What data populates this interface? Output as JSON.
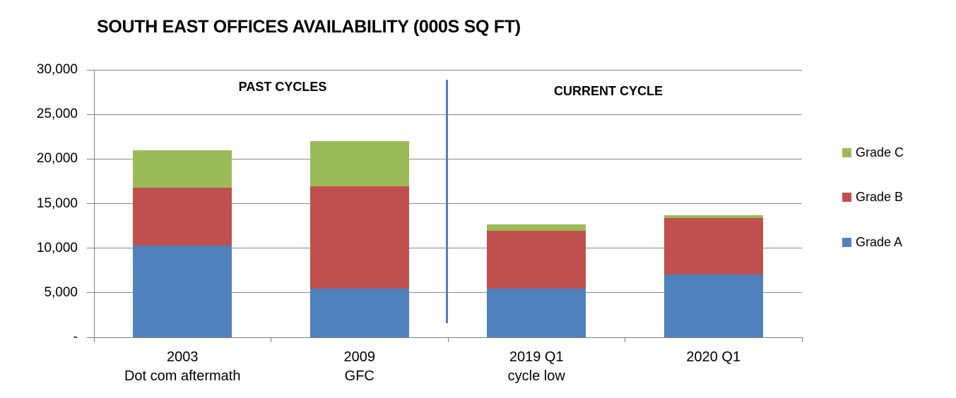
{
  "chart_data": {
    "type": "bar",
    "stacked": true,
    "title": "SOUTH EAST OFFICES AVAILABILITY (000S SQ FT)",
    "categories": [
      {
        "label": "2003",
        "sublabel": "Dot com aftermath"
      },
      {
        "label": "2009",
        "sublabel": "GFC"
      },
      {
        "label": "2019 Q1",
        "sublabel": "cycle low"
      },
      {
        "label": "2020 Q1",
        "sublabel": ""
      }
    ],
    "series": [
      {
        "name": "Grade A",
        "color": "#4F81BD",
        "values": [
          10300,
          5500,
          5500,
          7050
        ]
      },
      {
        "name": "Grade B",
        "color": "#C0504D",
        "values": [
          6500,
          11400,
          6450,
          6300
        ]
      },
      {
        "name": "Grade C",
        "color": "#9BBB59",
        "values": [
          4200,
          5100,
          750,
          350
        ]
      }
    ],
    "ylim": [
      0,
      30000
    ],
    "ytick_step": 5000,
    "ytick_labels": [
      "-",
      "5,000",
      "10,000",
      "15,000",
      "20,000",
      "25,000",
      "30,000"
    ],
    "grid": true,
    "legend": {
      "position": "right",
      "entries": [
        "Grade C",
        "Grade B",
        "Grade A"
      ]
    },
    "annotations": [
      {
        "text": "PAST CYCLES"
      },
      {
        "text": "CURRENT CYCLE"
      }
    ],
    "divider_color": "#4F81BD",
    "axis_color": "#808080"
  }
}
